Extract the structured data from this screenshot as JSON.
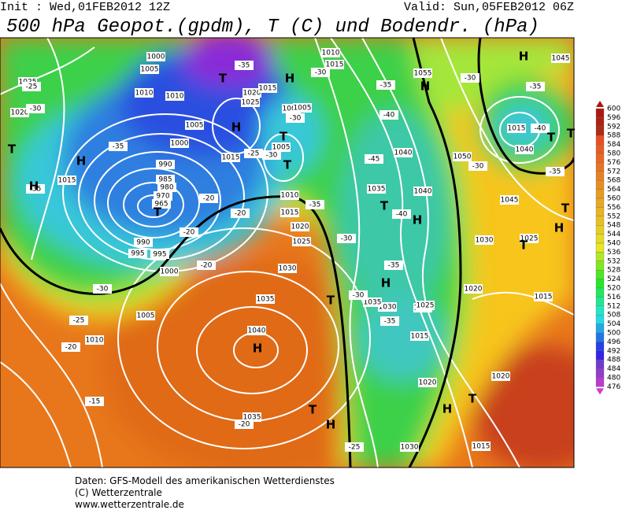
{
  "header": {
    "init": "Init : Wed,01FEB2012 12Z",
    "valid": "Valid: Sun,05FEB2012 06Z",
    "title": "500 hPa Geopot.(gpdm), T (C) und Bodendr. (hPa)"
  },
  "colorbar": {
    "labels": [
      600,
      596,
      592,
      588,
      584,
      580,
      576,
      572,
      568,
      564,
      560,
      556,
      552,
      548,
      544,
      540,
      536,
      532,
      528,
      524,
      520,
      516,
      512,
      508,
      504,
      500,
      496,
      492,
      488,
      484,
      480,
      476
    ]
  },
  "map": {
    "pressure_labels": [
      1025,
      1020,
      1015,
      1010,
      1005,
      1000,
      995,
      990,
      985,
      980,
      970,
      965,
      990,
      995,
      1000,
      1005,
      1010,
      1000,
      1005,
      1010,
      1015,
      1020,
      1025,
      1015,
      1010,
      1005,
      1000,
      1015,
      1020,
      1025,
      1030,
      1035,
      1040,
      1035,
      1030,
      1015,
      1020,
      1025,
      1030,
      1035,
      1040,
      1055,
      1050,
      1045,
      1040,
      1035,
      1030,
      1025,
      1020,
      1015,
      1025,
      1020,
      1015,
      1040,
      1015,
      1045,
      1005,
      1010,
      1015
    ],
    "temperature_labels": [
      -25,
      -30,
      -35,
      -35,
      -30,
      -25,
      -20,
      -20,
      -20,
      -20,
      -30,
      -35,
      -30,
      -35,
      -40,
      -45,
      -40,
      -35,
      -30,
      -35,
      -30,
      -35,
      -30,
      -25,
      -20,
      -15,
      -20,
      -25,
      -30,
      -35,
      -40,
      -35,
      -30
    ],
    "centers": [
      "H",
      "H",
      "T",
      "T",
      "H",
      "T",
      "T",
      "H",
      "H",
      "H",
      "H",
      "T",
      "T",
      "H",
      "H",
      "T",
      "H",
      "T",
      "T",
      "T",
      "H",
      "T",
      "H",
      "T",
      "T"
    ]
  },
  "footer": {
    "lines": [
      "Daten: GFS-Modell des amerikanischen Wetterdienstes",
      "(C) Wetterzentrale",
      "www.wetterzentrale.de"
    ]
  }
}
